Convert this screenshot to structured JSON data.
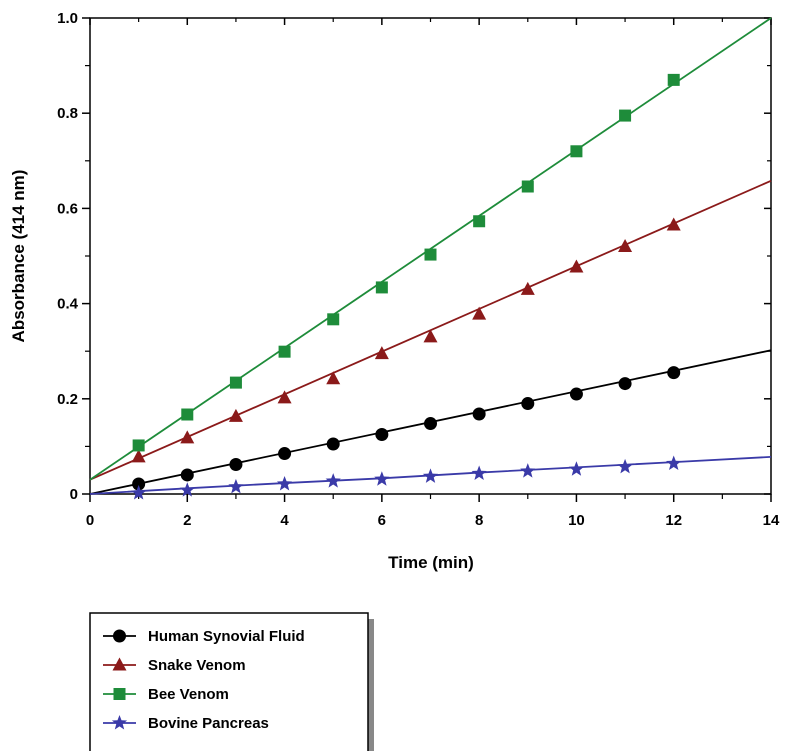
{
  "chart_data": {
    "type": "scatter",
    "xlabel": "Time (min)",
    "ylabel": "Absorbance (414 nm)",
    "xlim": [
      0,
      14
    ],
    "ylim": [
      0,
      1.0
    ],
    "xticks": [
      "0",
      "2",
      "4",
      "6",
      "8",
      "10",
      "12",
      "14"
    ],
    "yticks": [
      "0",
      "0.2",
      "0.4",
      "0.6",
      "0.8",
      "1.0"
    ],
    "grid": false,
    "legend_position": "bottom-left",
    "series": [
      {
        "name": "Human Synovial Fluid",
        "marker": "circle",
        "color": "#000000",
        "x": [
          1,
          2,
          3,
          4,
          5,
          6,
          7,
          8,
          9,
          10,
          11,
          12
        ],
        "y": [
          0.021,
          0.04,
          0.062,
          0.085,
          0.105,
          0.125,
          0.148,
          0.168,
          0.19,
          0.21,
          0.232,
          0.255
        ],
        "fit": [
          [
            0,
            0.0
          ],
          [
            14,
            0.302
          ]
        ]
      },
      {
        "name": "Snake Venom",
        "marker": "triangle",
        "color": "#8b1a1a",
        "x": [
          1,
          2,
          3,
          4,
          5,
          6,
          7,
          8,
          9,
          10,
          11,
          12
        ],
        "y": [
          0.078,
          0.118,
          0.163,
          0.202,
          0.242,
          0.295,
          0.33,
          0.378,
          0.43,
          0.477,
          0.52,
          0.565
        ],
        "fit": [
          [
            0,
            0.03
          ],
          [
            14,
            0.658
          ]
        ]
      },
      {
        "name": "Bee Venom",
        "marker": "square",
        "color": "#1e8c3a",
        "x": [
          1,
          2,
          3,
          4,
          5,
          6,
          7,
          8,
          9,
          10,
          11,
          12
        ],
        "y": [
          0.102,
          0.167,
          0.234,
          0.299,
          0.367,
          0.434,
          0.503,
          0.573,
          0.646,
          0.72,
          0.795,
          0.87
        ],
        "fit": [
          [
            0,
            0.03
          ],
          [
            14,
            1.0
          ]
        ]
      },
      {
        "name": "Bovine Pancreas",
        "marker": "star",
        "color": "#3a3aa8",
        "x": [
          1,
          2,
          3,
          4,
          5,
          6,
          7,
          8,
          9,
          10,
          11,
          12
        ],
        "y": [
          0.002,
          0.008,
          0.015,
          0.021,
          0.027,
          0.031,
          0.037,
          0.043,
          0.048,
          0.052,
          0.057,
          0.064
        ],
        "fit": [
          [
            0,
            0.0
          ],
          [
            2,
            0.012
          ],
          [
            4,
            0.023
          ],
          [
            6,
            0.033
          ],
          [
            8,
            0.045
          ],
          [
            10,
            0.056
          ],
          [
            12,
            0.067
          ],
          [
            14,
            0.078
          ]
        ]
      }
    ]
  }
}
